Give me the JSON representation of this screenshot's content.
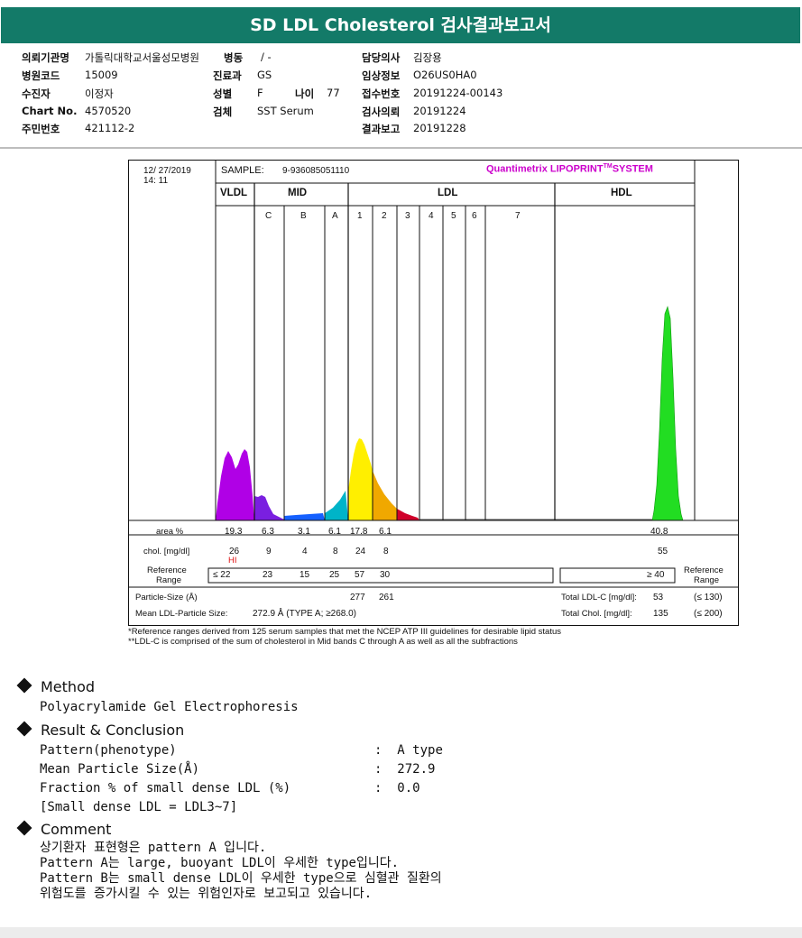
{
  "title": "SD LDL Cholesterol 검사결과보고서",
  "info": [
    {
      "label": "의뢰기관명",
      "value": "가톨릭대학교서울성모병원"
    },
    {
      "label": "병동",
      "value": "/ -"
    },
    {
      "label": "담당의사",
      "value": "김장용"
    },
    {
      "label": "병원코드",
      "value": "15009"
    },
    {
      "label": "진료과",
      "value": "GS"
    },
    {
      "label": "임상정보",
      "value": "O26US0HA0"
    },
    {
      "label": "수진자",
      "value": "이정자"
    },
    {
      "label": "성별",
      "value": "F"
    },
    {
      "label": "나이",
      "value": "77"
    },
    {
      "label": "접수번호",
      "value": "20191224-00143"
    },
    {
      "label": "Chart No.",
      "value": "4570520"
    },
    {
      "label": "검체",
      "value": "SST Serum"
    },
    {
      "label": "검사의뢰",
      "value": "20191224"
    },
    {
      "label": "주민번호",
      "value": "421112-2"
    },
    {
      "label": "결과보고",
      "value": "20191228"
    }
  ],
  "report": {
    "date": "12/ 27/2019",
    "time": "14: 11",
    "sample_label": "SAMPLE:",
    "sample_id": "9-936085051110",
    "system": "Quantimetrix LIPOPRINT",
    "system_tm": "TM",
    "system_suffix": "SYSTEM",
    "groups": [
      "VLDL",
      "MID",
      "LDL",
      "HDL"
    ],
    "bands": [
      "C",
      "B",
      "A",
      "1",
      "2",
      "3",
      "4",
      "5",
      "6",
      "7"
    ],
    "row_labels": {
      "area": "area %",
      "chol": "chol. [mg/dl]",
      "ref_line1": "Reference",
      "ref_line2": "Range",
      "ref_right_line1": "Reference",
      "ref_right_line2": "Range",
      "particle": "Particle-Size (Å)",
      "mean": "Mean LDL-Particle Size:"
    },
    "area": [
      "19.3",
      "6.3",
      "3.1",
      "6.1",
      "17.8",
      "6.1",
      "40.8"
    ],
    "chol": [
      "26",
      "9",
      "4",
      "8",
      "24",
      "8",
      "55"
    ],
    "hi_flag": "HI",
    "ref_left": [
      "≤ 22",
      "23",
      "15",
      "25",
      "57",
      "30"
    ],
    "ref_hdl": "≥ 40",
    "particle_sizes": [
      "277",
      "261"
    ],
    "mean_value": "272.9 Å   (TYPE A; ≥268.0)",
    "total_ldl_label": "Total LDL-C [mg/dl]:",
    "total_ldl_value": "53",
    "total_ldl_range": "(≤ 130)",
    "total_chol_label": "Total Chol. [mg/dl]:",
    "total_chol_value": "135",
    "total_chol_range": "(≤ 200)",
    "colors": {
      "vldl": "#b000e6",
      "midc": "#7a1fe0",
      "midb": "#1560ff",
      "mida": "#00b4c8",
      "ldl1": "#ffef00",
      "ldl2": "#f0a800",
      "ldl3": "#d0002a",
      "hdl": "#22dd22"
    }
  },
  "notes": [
    "*Reference ranges derived from 125 serum samples that met the NCEP ATP III guidelines for desirable lipid status",
    "**LDL-C is comprised of the sum of cholesterol in Mid bands C through A as well as all the subfractions"
  ],
  "method": {
    "heading": "Method",
    "text": "Polyacrylamide Gel Electrophoresis"
  },
  "result": {
    "heading": "Result & Conclusion",
    "rows": [
      {
        "label": "Pattern(phenotype)",
        "value": "A type"
      },
      {
        "label": "Mean Particle Size(Å)",
        "value": "272.9"
      },
      {
        "label": "Fraction % of small dense LDL (%)",
        "value": "0.0"
      }
    ],
    "note": "[Small dense LDL = LDL3~7]"
  },
  "comment": {
    "heading": "Comment",
    "lines": [
      "상기환자 표현형은 pattern A 입니다.",
      "Pattern A는 large, buoyant LDL이 우세한 type입니다.",
      "Pattern B는 small dense LDL이 우세한 type으로 심혈관 질환의",
      "위험도를 증가시킬 수 있는 위험인자로 보고되고 있습니다."
    ]
  }
}
